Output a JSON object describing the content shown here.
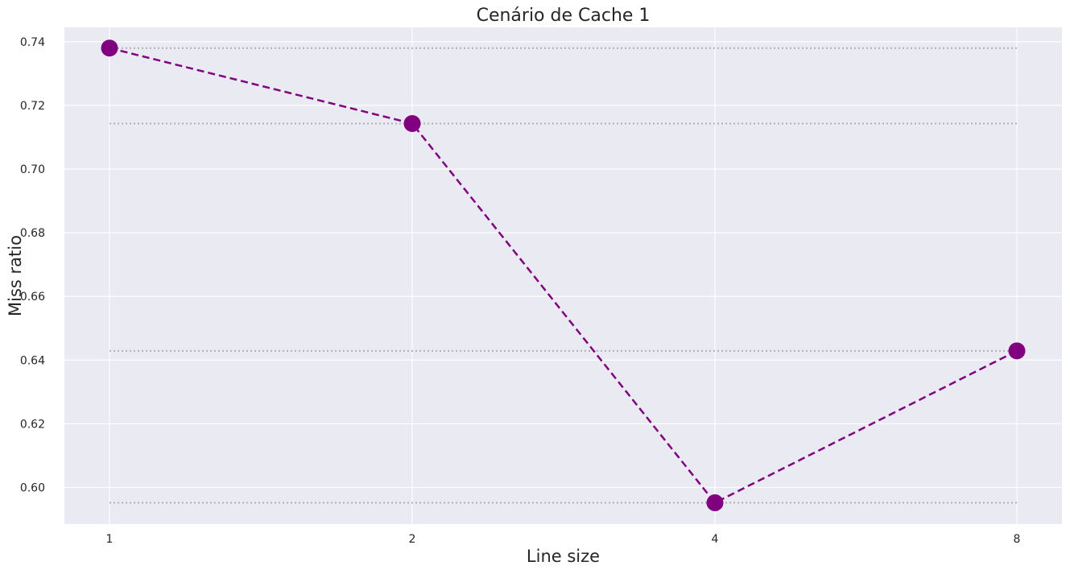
{
  "chart_data": {
    "type": "line",
    "title": "Cenário de Cache 1",
    "xlabel": "Line size",
    "ylabel": "Miss ratio",
    "categories": [
      "1",
      "2",
      "4",
      "8"
    ],
    "series": [
      {
        "values": [
          0.738,
          0.7143,
          0.5952,
          0.6429
        ],
        "color": "#800080",
        "line_style": "dashed",
        "marker": "circle"
      }
    ],
    "reference_lines": [
      0.738,
      0.7143,
      0.6429,
      0.5952
    ],
    "reference_line_color": "#b0b0b0",
    "yticks": [
      "0.60",
      "0.62",
      "0.64",
      "0.66",
      "0.68",
      "0.70",
      "0.72",
      "0.74"
    ],
    "ylim": [
      0.5885,
      0.7445
    ],
    "grid": true,
    "background_color": "#eaeaf2",
    "grid_color": "#ffffff"
  }
}
